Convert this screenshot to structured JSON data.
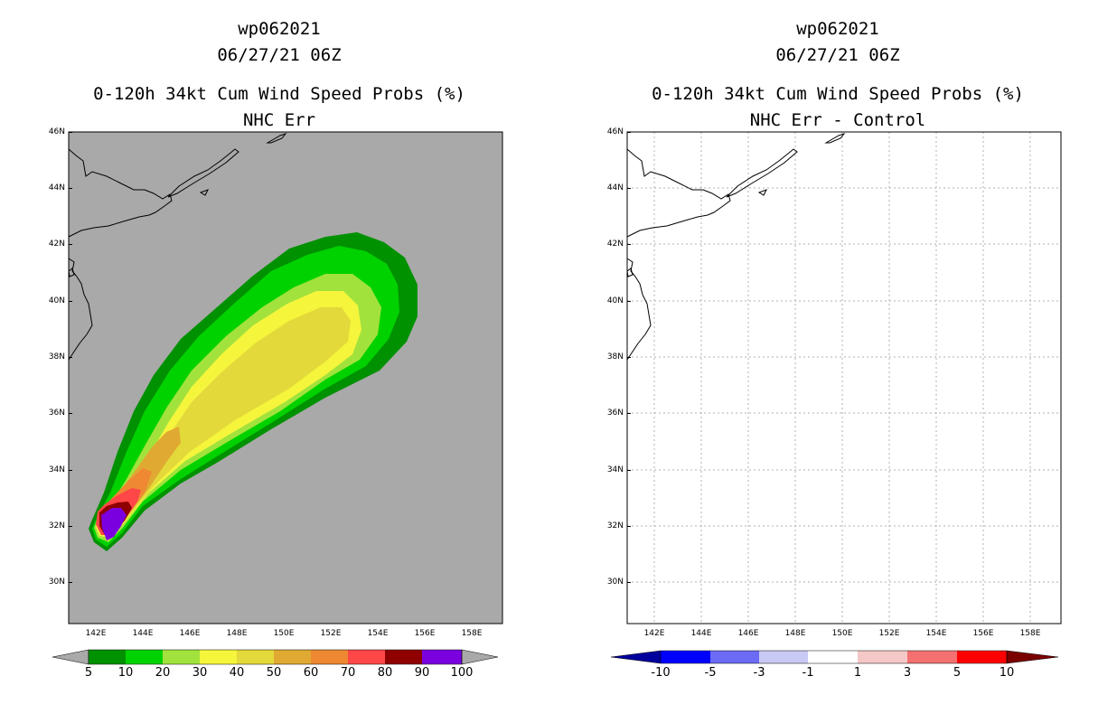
{
  "colors": {
    "land_ocean_background": "#a9a9a9",
    "c5": "#009100",
    "c10": "#00d200",
    "c20": "#a2e23c",
    "c30": "#f5f53c",
    "c40": "#e3d93a",
    "c50": "#e0aa32",
    "c60": "#ee8832",
    "c70": "#ff4747",
    "c80": "#8f0000",
    "c90": "#7a00e0",
    "d_neg10": "#00009c",
    "d_neg5": "#0000ff",
    "d_neg3": "#6b6bf5",
    "d_neg1": "#c9c9f5",
    "d_0": "#ffffff",
    "d_1": "#f5c8c8",
    "d_3": "#f57070",
    "d_5": "#ff0000",
    "d_10": "#7a0000"
  },
  "left": {
    "title_line1": "wp062021",
    "title_line2": "06/27/21 06Z",
    "title_line3": "0-120h 34kt Cum Wind Speed Probs (%)",
    "title_line4": "NHC Err",
    "map_name": "probability-map",
    "colorbar_labels": [
      "5",
      "10",
      "20",
      "30",
      "40",
      "50",
      "60",
      "70",
      "80",
      "90",
      "100"
    ]
  },
  "right": {
    "title_line1": "wp062021",
    "title_line2": "06/27/21 06Z",
    "title_line3": "0-120h 34kt Cum Wind Speed Probs (%)",
    "title_line4": "NHC Err - Control",
    "map_name": "difference-map",
    "colorbar_labels": [
      "-10",
      "-5",
      "-3",
      "-1",
      "1",
      "3",
      "5",
      "10"
    ]
  },
  "lat_labels": [
    "46N",
    "44N",
    "42N",
    "40N",
    "38N",
    "36N",
    "34N",
    "32N",
    "30N"
  ],
  "lon_labels": [
    "142E",
    "144E",
    "146E",
    "148E",
    "150E",
    "152E",
    "154E",
    "156E",
    "158E"
  ],
  "probability_contours_pct": [
    5,
    10,
    20,
    30,
    40,
    50,
    60,
    70,
    80,
    90
  ]
}
